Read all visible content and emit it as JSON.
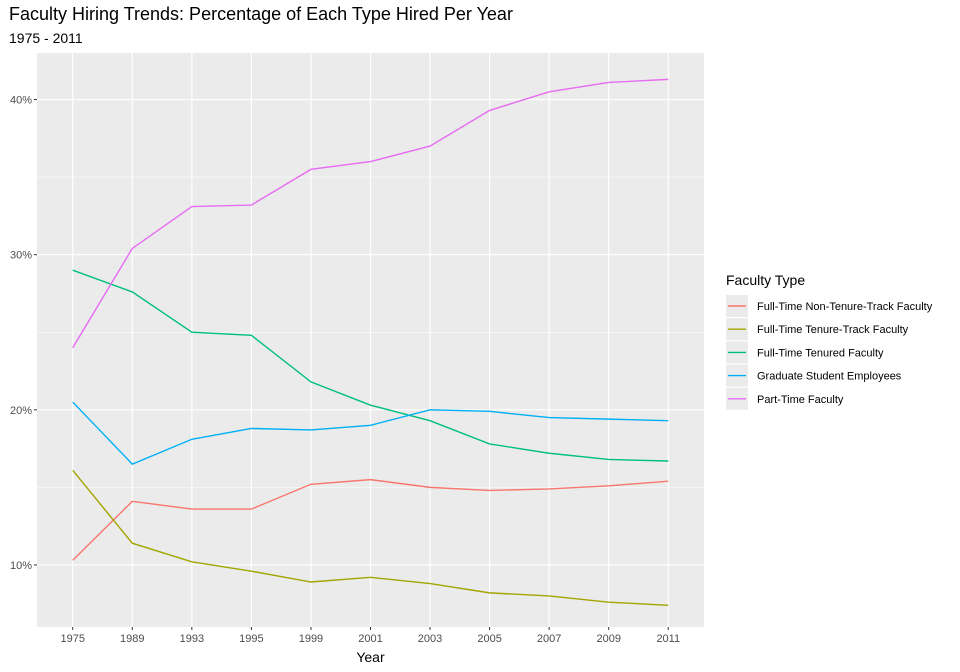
{
  "chart_data": {
    "type": "line",
    "title": "Faculty Hiring Trends: Percentage of Each Type Hired Per Year",
    "subtitle": "1975 - 2011",
    "xlabel": "Year",
    "ylabel": "",
    "x": [
      "1975",
      "1989",
      "1993",
      "1995",
      "1999",
      "2001",
      "2003",
      "2005",
      "2007",
      "2009",
      "2011"
    ],
    "ylim": [
      6.0,
      43.0
    ],
    "yticks": [
      10,
      20,
      30,
      40
    ],
    "ytick_labels": [
      "10%",
      "20%",
      "30%",
      "40%"
    ],
    "grid": true,
    "legend": {
      "title": "Faculty Type",
      "position": "right"
    },
    "series": [
      {
        "name": "Full-Time Non-Tenure-Track Faculty",
        "color": "#F8766D",
        "values": [
          10.3,
          14.1,
          13.6,
          13.6,
          15.2,
          15.5,
          15.0,
          14.8,
          14.9,
          15.1,
          15.4
        ]
      },
      {
        "name": "Full-Time Tenure-Track Faculty",
        "color": "#A3A500",
        "values": [
          16.1,
          11.4,
          10.2,
          9.6,
          8.9,
          9.2,
          8.8,
          8.2,
          8.0,
          7.6,
          7.4
        ]
      },
      {
        "name": "Full-Time Tenured Faculty",
        "color": "#00BF7D",
        "values": [
          29.0,
          27.6,
          25.0,
          24.8,
          21.8,
          20.3,
          19.3,
          17.8,
          17.2,
          16.8,
          16.7
        ]
      },
      {
        "name": "Graduate Student Employees",
        "color": "#00B0F6",
        "values": [
          20.5,
          16.5,
          18.1,
          18.8,
          18.7,
          19.0,
          20.0,
          19.9,
          19.5,
          19.4,
          19.3
        ]
      },
      {
        "name": "Part-Time Faculty",
        "color": "#E76BF3",
        "values": [
          24.0,
          30.4,
          33.1,
          33.2,
          35.5,
          36.0,
          37.0,
          39.3,
          40.5,
          41.1,
          41.3
        ]
      }
    ]
  }
}
